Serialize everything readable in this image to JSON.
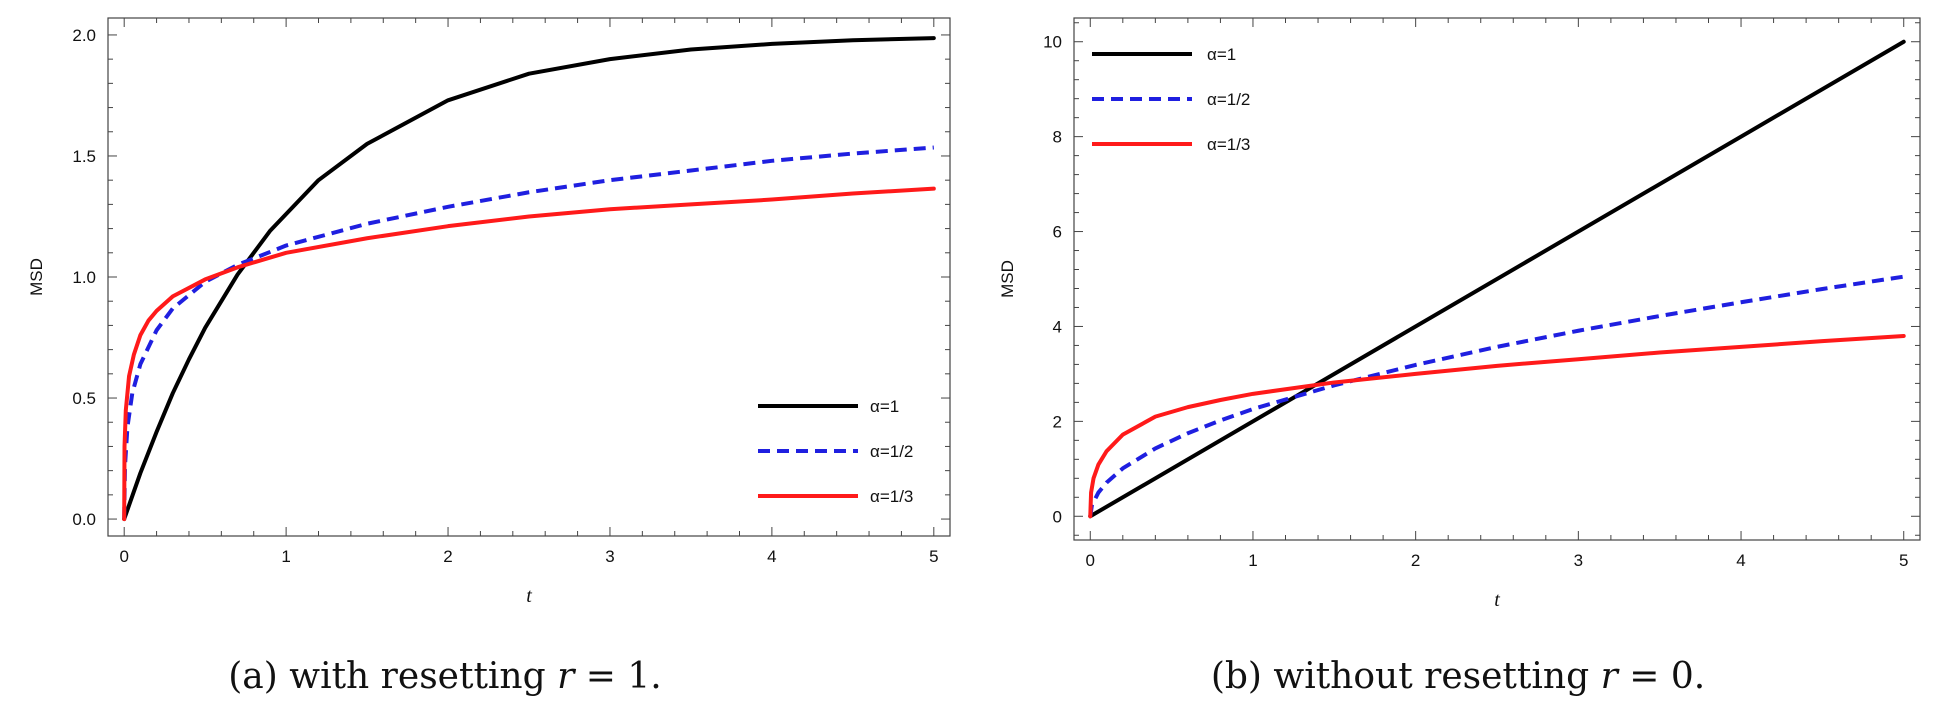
{
  "figure": {
    "captions": [
      {
        "prefix": "(a) with resetting ",
        "var": "r",
        "suffix": " = 1."
      },
      {
        "prefix": "(b) without resetting ",
        "var": "r",
        "suffix": " = 0."
      }
    ]
  },
  "chart_data": [
    {
      "type": "line",
      "title": "",
      "xlabel": "t",
      "ylabel": "MSD",
      "xlim": [
        -0.1,
        5.1
      ],
      "ylim": [
        -0.07,
        2.07
      ],
      "xticks": [
        0,
        1,
        2,
        3,
        4,
        5
      ],
      "xtick_labels": [
        "0",
        "1",
        "2",
        "3",
        "4",
        "5"
      ],
      "yticks": [
        0.0,
        0.5,
        1.0,
        1.5,
        2.0
      ],
      "ytick_labels": [
        "0.0",
        "0.5",
        "1.0",
        "1.5",
        "2.0"
      ],
      "grid": false,
      "legend_position": "bottom-right",
      "colors": {
        "black": "#000000",
        "blue": "#1f1fe0",
        "red": "#ff1a1a"
      },
      "series": [
        {
          "name": "α=1",
          "style": "solid",
          "color": "#000000",
          "x": [
            0,
            0.1,
            0.2,
            0.3,
            0.4,
            0.5,
            0.7,
            0.9,
            1.2,
            1.5,
            2.0,
            2.5,
            3.0,
            3.5,
            4.0,
            4.5,
            5.0
          ],
          "y": [
            0,
            0.19,
            0.36,
            0.52,
            0.66,
            0.79,
            1.01,
            1.19,
            1.4,
            1.55,
            1.73,
            1.84,
            1.9,
            1.94,
            1.963,
            1.978,
            1.987
          ]
        },
        {
          "name": "α=1/2",
          "style": "dashed",
          "color": "#1f1fe0",
          "x": [
            0,
            0.005,
            0.02,
            0.05,
            0.1,
            0.2,
            0.3,
            0.5,
            0.7,
            1.0,
            1.5,
            2.0,
            2.5,
            3.0,
            3.5,
            4.0,
            4.5,
            5.0
          ],
          "y": [
            0,
            0.22,
            0.38,
            0.52,
            0.64,
            0.78,
            0.87,
            0.98,
            1.05,
            1.13,
            1.22,
            1.29,
            1.35,
            1.4,
            1.44,
            1.48,
            1.51,
            1.535
          ]
        },
        {
          "name": "α=1/3",
          "style": "solid",
          "color": "#ff1a1a",
          "x": [
            0,
            0.002,
            0.01,
            0.03,
            0.06,
            0.1,
            0.15,
            0.2,
            0.3,
            0.5,
            0.7,
            1.0,
            1.5,
            2.0,
            2.5,
            3.0,
            3.5,
            4.0,
            4.5,
            5.0
          ],
          "y": [
            0,
            0.3,
            0.45,
            0.59,
            0.68,
            0.76,
            0.82,
            0.86,
            0.92,
            0.99,
            1.04,
            1.1,
            1.16,
            1.21,
            1.25,
            1.28,
            1.3,
            1.32,
            1.345,
            1.365
          ]
        }
      ]
    },
    {
      "type": "line",
      "title": "",
      "xlabel": "t",
      "ylabel": "MSD",
      "xlim": [
        -0.1,
        5.1
      ],
      "ylim": [
        -0.5,
        10.5
      ],
      "xticks": [
        0,
        1,
        2,
        3,
        4,
        5
      ],
      "xtick_labels": [
        "0",
        "1",
        "2",
        "3",
        "4",
        "5"
      ],
      "yticks": [
        0,
        2,
        4,
        6,
        8,
        10
      ],
      "ytick_labels": [
        "0",
        "2",
        "4",
        "6",
        "8",
        "10"
      ],
      "grid": false,
      "legend_position": "top-left",
      "colors": {
        "black": "#000000",
        "blue": "#1f1fe0",
        "red": "#ff1a1a"
      },
      "series": [
        {
          "name": "α=1",
          "style": "solid",
          "color": "#000000",
          "x": [
            0,
            5
          ],
          "y": [
            0,
            10
          ]
        },
        {
          "name": "α=1/2",
          "style": "dashed",
          "color": "#1f1fe0",
          "x": [
            0,
            0.01,
            0.05,
            0.1,
            0.2,
            0.4,
            0.6,
            0.8,
            1.0,
            1.5,
            2.0,
            2.5,
            3.0,
            3.5,
            4.0,
            4.5,
            5.0
          ],
          "y": [
            0,
            0.23,
            0.5,
            0.71,
            1.01,
            1.43,
            1.75,
            2.02,
            2.26,
            2.76,
            3.19,
            3.57,
            3.91,
            4.22,
            4.51,
            4.79,
            5.05
          ]
        },
        {
          "name": "α=1/3",
          "style": "solid",
          "color": "#ff1a1a",
          "x": [
            0,
            0.005,
            0.02,
            0.05,
            0.1,
            0.2,
            0.4,
            0.6,
            0.8,
            1.0,
            1.5,
            2.0,
            2.5,
            3.0,
            3.5,
            4.0,
            4.5,
            5.0
          ],
          "y": [
            0,
            0.5,
            0.8,
            1.09,
            1.37,
            1.72,
            2.1,
            2.3,
            2.45,
            2.58,
            2.82,
            3.0,
            3.17,
            3.31,
            3.45,
            3.57,
            3.69,
            3.8
          ]
        }
      ]
    }
  ]
}
